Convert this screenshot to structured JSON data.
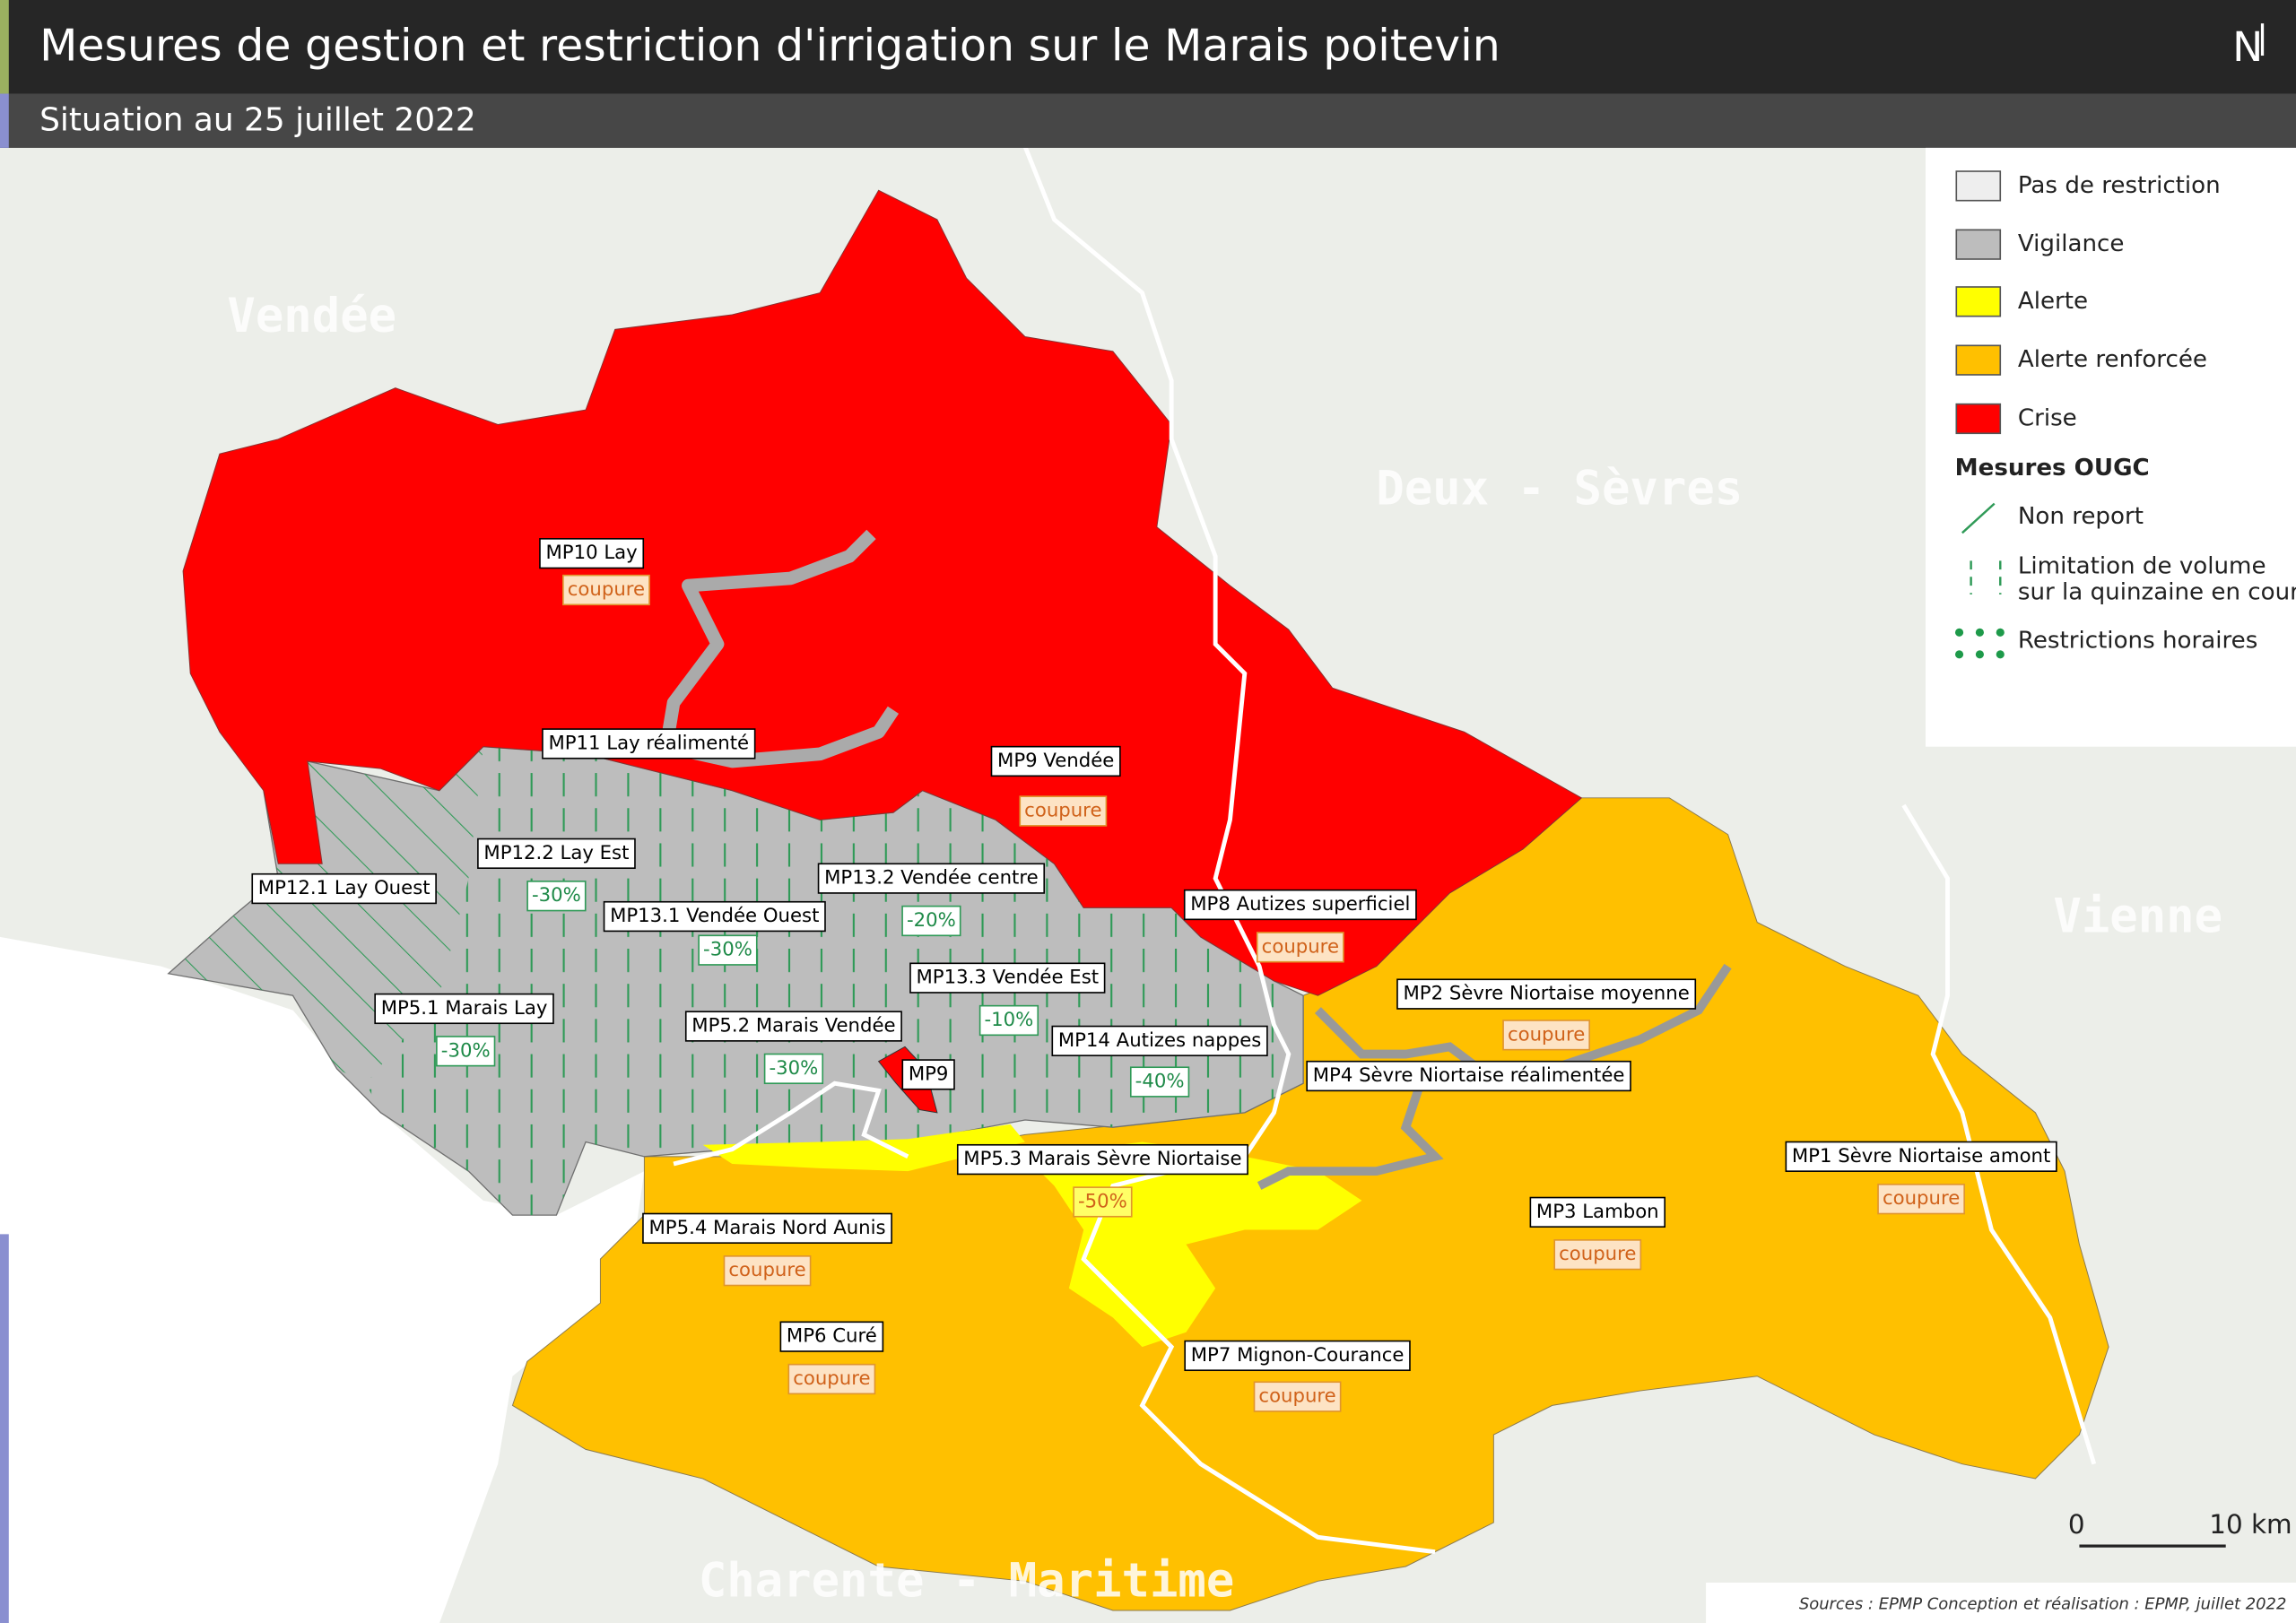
{
  "header": {
    "title": "Mesures de gestion et restriction d'irrigation sur le Marais poitevin",
    "subtitle": "Situation au 25 juillet 2022"
  },
  "north": "N",
  "departments": [
    "Vendée",
    "Deux - Sèvres",
    "Vienne",
    "Charente - Maritime"
  ],
  "legend": {
    "items": [
      "Pas de restriction",
      "Vigilance",
      "Alerte",
      "Alerte renforcée",
      "Crise"
    ],
    "section_title": "Mesures OUGC",
    "measures": [
      {
        "lines": [
          "Non report"
        ]
      },
      {
        "lines": [
          "Limitation de volume",
          "sur la quinzaine en cours"
        ]
      },
      {
        "lines": [
          "Restrictions horaires"
        ]
      }
    ]
  },
  "zones": [
    {
      "name": "MP10 Lay",
      "measure": "coupure"
    },
    {
      "name": "MP11 Lay réalimenté"
    },
    {
      "name": "MP9 Vendée",
      "measure": "coupure"
    },
    {
      "name": "MP12.1 Lay Ouest"
    },
    {
      "name": "MP12.2 Lay Est",
      "measure": "-30%"
    },
    {
      "name": "MP13.2 Vendée centre",
      "measure": "-20%"
    },
    {
      "name": "MP13.1 Vendée Ouest",
      "measure": "-30%"
    },
    {
      "name": "MP8 Autizes superficiel",
      "measure": "coupure"
    },
    {
      "name": "MP13.3 Vendée Est",
      "measure": "-10%"
    },
    {
      "name": "MP2 Sèvre Niortaise moyenne",
      "measure": "coupure"
    },
    {
      "name": "MP5.1 Marais Lay",
      "measure": "-30%"
    },
    {
      "name": "MP5.2 Marais Vendée",
      "measure": "-30%"
    },
    {
      "name": "MP14 Autizes nappes",
      "measure": "-40%"
    },
    {
      "name": "MP9"
    },
    {
      "name": "MP4 Sèvre Niortaise réalimentée"
    },
    {
      "name": "MP5.3 Marais Sèvre Niortaise",
      "measure": "-50%"
    },
    {
      "name": "MP1 Sèvre Niortaise amont",
      "measure": "coupure"
    },
    {
      "name": "MP3 Lambon",
      "measure": "coupure"
    },
    {
      "name": "MP5.4 Marais Nord Aunis",
      "measure": "coupure"
    },
    {
      "name": "MP6 Curé",
      "measure": "coupure"
    },
    {
      "name": "MP7 Mignon-Courance",
      "measure": "coupure"
    }
  ],
  "scale": {
    "start": "0",
    "end": "10 km"
  },
  "source": "Sources : EPMP Conception et réalisation : EPMP, juillet 2022"
}
